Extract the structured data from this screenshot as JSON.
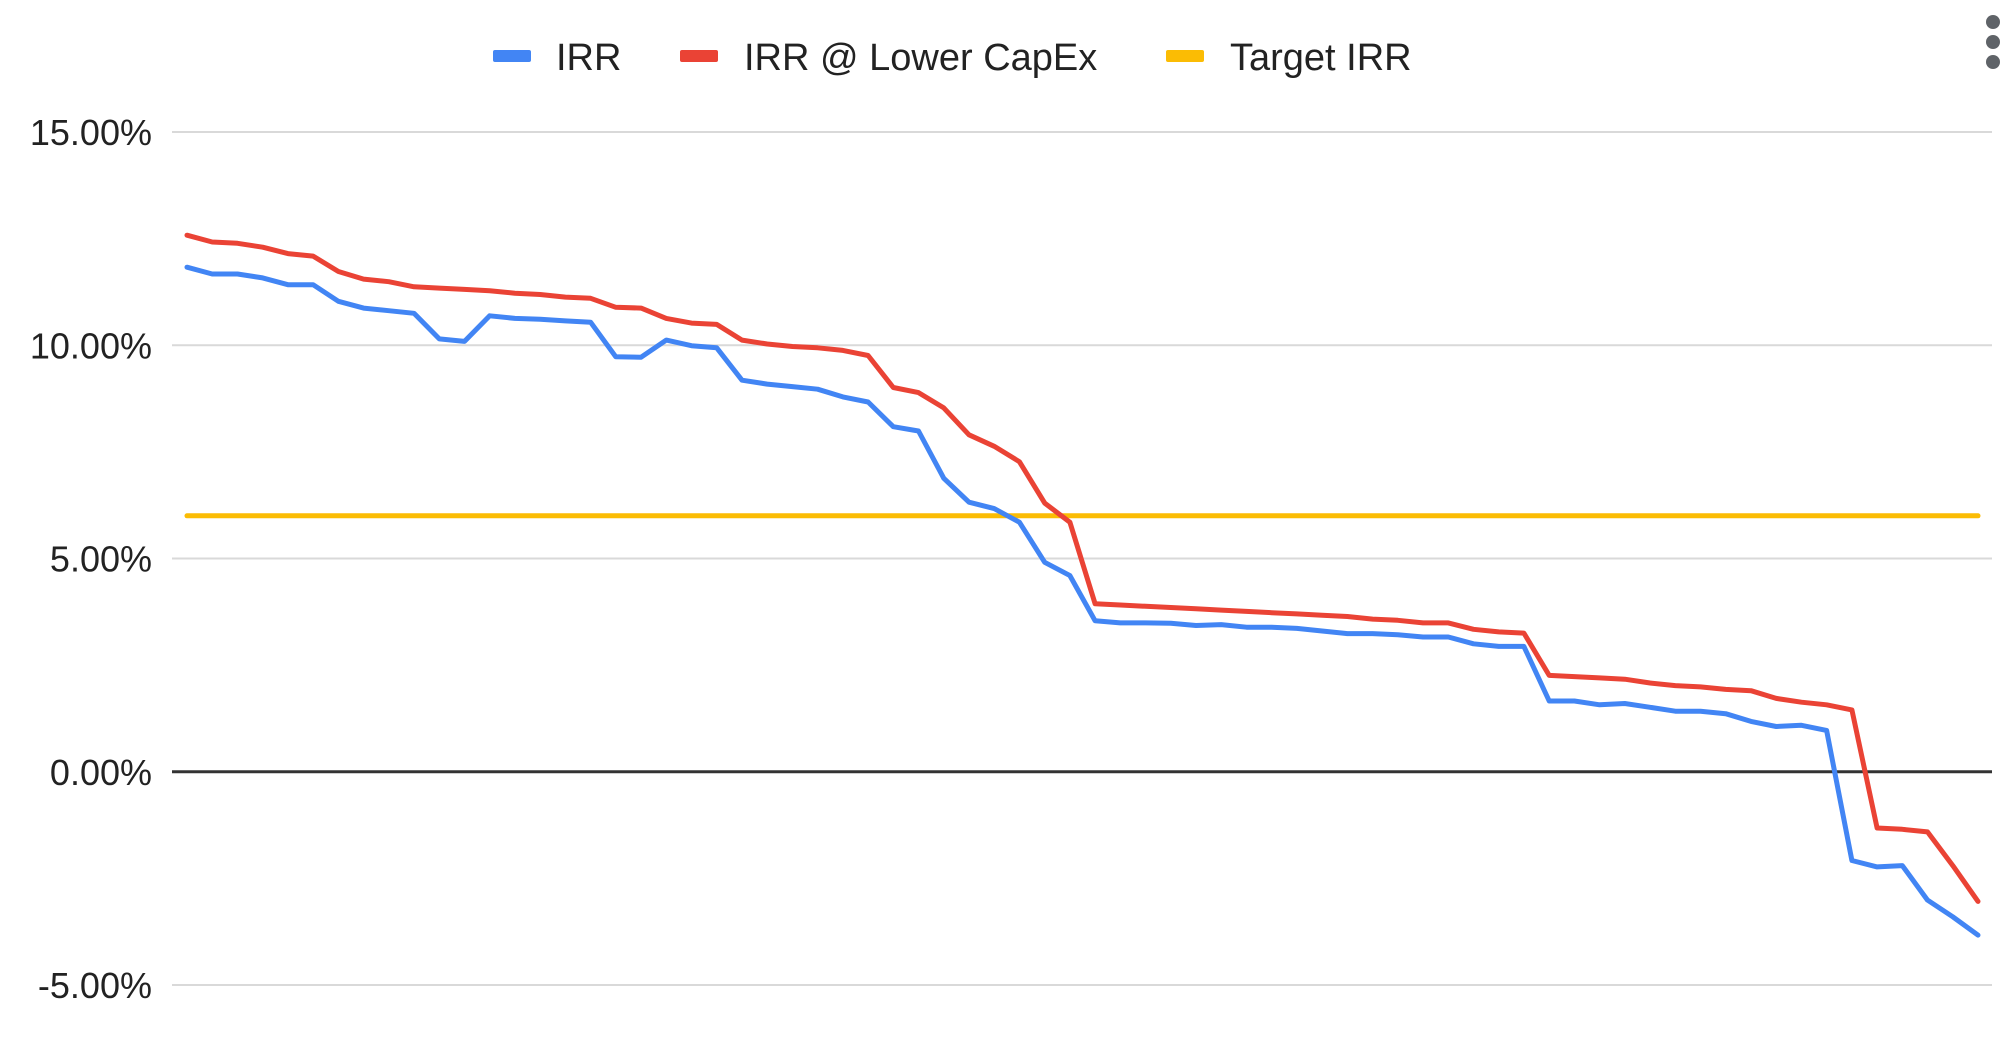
{
  "chart_data": {
    "type": "line",
    "title": "",
    "xlabel": "",
    "ylabel": "",
    "ylim": [
      -0.05,
      0.15
    ],
    "y_ticks": [
      {
        "value": 0.15,
        "label": "15.00%"
      },
      {
        "value": 0.1,
        "label": "10.00%"
      },
      {
        "value": 0.05,
        "label": "5.00%"
      },
      {
        "value": 0.0,
        "label": "0.00%"
      },
      {
        "value": -0.05,
        "label": "-5.00%"
      }
    ],
    "grid": true,
    "legend_position": "top",
    "series": [
      {
        "name": "IRR",
        "color": "#4285F4",
        "values": [
          0.1183,
          0.1167,
          0.1167,
          0.1158,
          0.1142,
          0.1142,
          0.1103,
          0.1087,
          0.1081,
          0.1075,
          0.1015,
          0.1009,
          0.1069,
          0.1063,
          0.1061,
          0.1057,
          0.1054,
          0.0973,
          0.0972,
          0.1012,
          0.0999,
          0.0994,
          0.0918,
          0.0909,
          0.0903,
          0.0897,
          0.0879,
          0.0867,
          0.0809,
          0.0799,
          0.0688,
          0.0632,
          0.0617,
          0.0585,
          0.0491,
          0.046,
          0.0354,
          0.0349,
          0.0349,
          0.0348,
          0.0343,
          0.0345,
          0.0339,
          0.0339,
          0.0336,
          0.033,
          0.0324,
          0.0324,
          0.0321,
          0.0316,
          0.0316,
          0.03,
          0.0294,
          0.0294,
          0.0166,
          0.0166,
          0.0157,
          0.016,
          0.0151,
          0.0142,
          0.0142,
          0.0136,
          0.0118,
          0.0106,
          0.0109,
          0.0097,
          -0.0208,
          -0.0223,
          -0.022,
          -0.0301,
          -0.034,
          -0.0383
        ]
      },
      {
        "name": "IRR @ Lower CapEx",
        "color": "#EA4335",
        "values": [
          0.1258,
          0.1242,
          0.1239,
          0.123,
          0.1215,
          0.1209,
          0.1173,
          0.1155,
          0.1149,
          0.1137,
          0.1134,
          0.1131,
          0.1128,
          0.1122,
          0.1119,
          0.1113,
          0.111,
          0.1089,
          0.1087,
          0.1063,
          0.1052,
          0.1049,
          0.1012,
          0.1003,
          0.0997,
          0.0994,
          0.0988,
          0.0976,
          0.0901,
          0.0889,
          0.0853,
          0.079,
          0.0763,
          0.0727,
          0.063,
          0.0585,
          0.0394,
          0.0391,
          0.0388,
          0.0385,
          0.0382,
          0.0379,
          0.0376,
          0.0373,
          0.037,
          0.0367,
          0.0364,
          0.0358,
          0.0355,
          0.0349,
          0.0349,
          0.0334,
          0.0328,
          0.0325,
          0.0226,
          0.0223,
          0.022,
          0.0217,
          0.0208,
          0.0202,
          0.0199,
          0.0193,
          0.019,
          0.0172,
          0.0163,
          0.0157,
          0.0145,
          -0.0132,
          -0.0135,
          -0.0141,
          -0.022,
          -0.0304
        ]
      },
      {
        "name": "Target IRR",
        "color": "#FBBC04",
        "values": [
          0.06,
          0.06,
          0.06,
          0.06,
          0.06,
          0.06,
          0.06,
          0.06,
          0.06,
          0.06,
          0.06,
          0.06,
          0.06,
          0.06,
          0.06,
          0.06,
          0.06,
          0.06,
          0.06,
          0.06,
          0.06,
          0.06,
          0.06,
          0.06,
          0.06,
          0.06,
          0.06,
          0.06,
          0.06,
          0.06,
          0.06,
          0.06,
          0.06,
          0.06,
          0.06,
          0.06,
          0.06,
          0.06,
          0.06,
          0.06,
          0.06,
          0.06,
          0.06,
          0.06,
          0.06,
          0.06,
          0.06,
          0.06,
          0.06,
          0.06,
          0.06,
          0.06,
          0.06,
          0.06,
          0.06,
          0.06,
          0.06,
          0.06,
          0.06,
          0.06,
          0.06,
          0.06,
          0.06,
          0.06,
          0.06,
          0.06,
          0.06,
          0.06,
          0.06,
          0.06,
          0.06,
          0.06
        ]
      }
    ]
  },
  "ui": {
    "menu_icon": "more-vert-icon",
    "gridline_color": "#d9d9d9",
    "zero_line_color": "#333333"
  }
}
